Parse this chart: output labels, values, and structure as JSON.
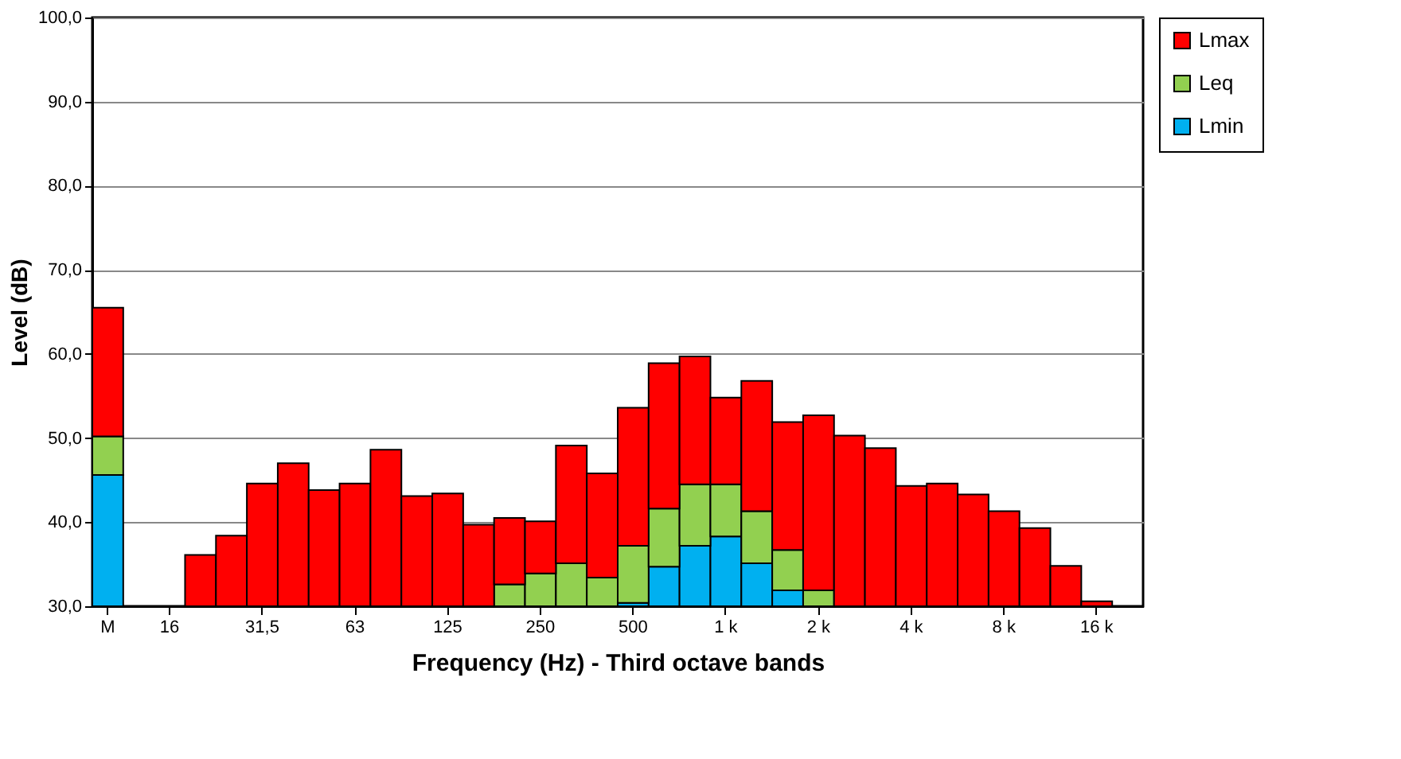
{
  "chart_data": {
    "type": "bar",
    "xlabel": "Frequency (Hz) - Third octave bands",
    "ylabel": "Level (dB)",
    "categories": [
      "M",
      null,
      "16",
      null,
      null,
      "31,5",
      null,
      null,
      "63",
      null,
      null,
      "125",
      null,
      null,
      "250",
      null,
      null,
      "500",
      null,
      null,
      "1 k",
      null,
      null,
      "2 k",
      null,
      null,
      "4 k",
      null,
      null,
      "8 k",
      null,
      null,
      "16 k",
      null
    ],
    "series": [
      {
        "name": "Lmin",
        "color": "#00b0f0",
        "base": [
          30,
          null,
          null,
          null,
          null,
          null,
          null,
          null,
          null,
          null,
          null,
          null,
          null,
          null,
          null,
          null,
          null,
          30,
          30,
          30,
          30,
          30,
          30,
          null,
          null,
          null,
          null,
          null,
          null,
          null,
          null,
          null,
          null,
          null
        ],
        "values": [
          15.6,
          null,
          null,
          null,
          null,
          null,
          null,
          null,
          null,
          null,
          null,
          null,
          null,
          null,
          null,
          null,
          null,
          0.4,
          4.7,
          7.2,
          8.3,
          5.1,
          1.9,
          null,
          null,
          null,
          null,
          null,
          null,
          null,
          null,
          null,
          null,
          null
        ]
      },
      {
        "name": "Leq",
        "color": "#92d050",
        "base": [
          45.6,
          null,
          null,
          null,
          null,
          null,
          null,
          null,
          null,
          null,
          null,
          null,
          null,
          30,
          30,
          30,
          30,
          30.4,
          34.7,
          37.2,
          38.3,
          35.1,
          31.9,
          30,
          null,
          null,
          null,
          null,
          null,
          null,
          null,
          null,
          null,
          null
        ],
        "values": [
          4.6,
          null,
          null,
          null,
          null,
          null,
          null,
          null,
          null,
          null,
          null,
          null,
          null,
          2.6,
          3.9,
          5.1,
          3.4,
          6.8,
          6.9,
          7.3,
          6.2,
          6.2,
          4.8,
          1.9,
          null,
          null,
          null,
          null,
          null,
          null,
          null,
          null,
          null,
          null
        ]
      },
      {
        "name": "Lmax",
        "color": "#ff0000",
        "base": [
          50.2,
          null,
          null,
          30,
          30,
          30,
          30,
          30,
          30,
          30,
          30,
          30,
          30,
          32.6,
          33.9,
          35.1,
          33.4,
          37.2,
          41.6,
          44.5,
          44.5,
          41.3,
          36.7,
          31.9,
          30,
          30,
          30,
          30,
          30,
          30,
          30,
          30,
          30,
          null
        ],
        "values": [
          15.3,
          null,
          null,
          6.1,
          8.4,
          14.6,
          17.0,
          13.8,
          14.6,
          18.6,
          13.1,
          13.4,
          9.7,
          7.9,
          6.2,
          14.0,
          12.4,
          16.4,
          17.3,
          15.2,
          10.3,
          15.5,
          15.2,
          20.8,
          20.3,
          18.8,
          14.3,
          14.6,
          13.3,
          11.3,
          9.3,
          4.8,
          0.6,
          null
        ]
      }
    ],
    "ylim": [
      30,
      100
    ],
    "yticks": [
      {
        "value": 30,
        "label": "30,0"
      },
      {
        "value": 40,
        "label": "40,0"
      },
      {
        "value": 50,
        "label": "50,0"
      },
      {
        "value": 60,
        "label": "60,0"
      },
      {
        "value": 70,
        "label": "70,0"
      },
      {
        "value": 80,
        "label": "80,0"
      },
      {
        "value": 90,
        "label": "90,0"
      },
      {
        "value": 100,
        "label": "100,0"
      }
    ],
    "grid": "y",
    "legend": "right"
  }
}
